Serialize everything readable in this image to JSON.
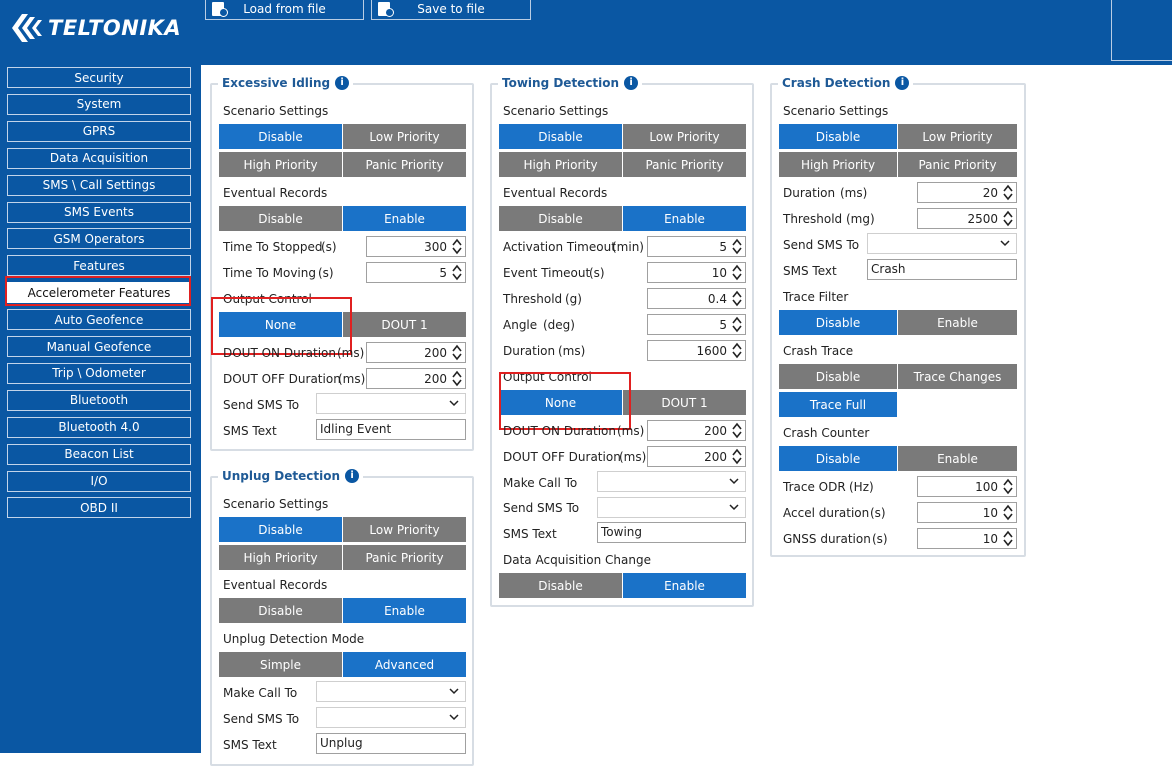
{
  "brand": {
    "logo_text": "TELTONIKA"
  },
  "toolbar": {
    "load_label": "Load from file",
    "save_label": "Save to file"
  },
  "sidebar": {
    "items": [
      {
        "label": "Security"
      },
      {
        "label": "System"
      },
      {
        "label": "GPRS"
      },
      {
        "label": "Data Acquisition"
      },
      {
        "label": "SMS \\ Call Settings"
      },
      {
        "label": "SMS Events"
      },
      {
        "label": "GSM Operators"
      },
      {
        "label": "Features"
      },
      {
        "label": "Accelerometer Features"
      },
      {
        "label": "Auto Geofence"
      },
      {
        "label": "Manual Geofence"
      },
      {
        "label": "Trip \\ Odometer"
      },
      {
        "label": "Bluetooth"
      },
      {
        "label": "Bluetooth 4.0"
      },
      {
        "label": "Beacon List"
      },
      {
        "label": "I/O"
      },
      {
        "label": "OBD II"
      }
    ],
    "active": "Accelerometer Features"
  },
  "idling": {
    "title": "Excessive Idling",
    "scenario_label": "Scenario Settings",
    "scenario": [
      "Disable",
      "Low Priority",
      "High Priority",
      "Panic Priority"
    ],
    "eventual_label": "Eventual Records",
    "eventual": [
      "Disable",
      "Enable"
    ],
    "time_to_stopped_label": "Time To Stopped",
    "time_to_stopped_unit": "(s)",
    "time_to_stopped": "300",
    "time_to_moving_label": "Time To Moving",
    "time_to_moving_unit": "(s)",
    "time_to_moving": "5",
    "output_label": "Output Control",
    "output": [
      "None",
      "DOUT 1"
    ],
    "dout_on_label": "DOUT ON Duration",
    "dout_on_unit": "(ms)",
    "dout_on": "200",
    "dout_off_label": "DOUT OFF Duration",
    "dout_off_unit": "(ms)",
    "dout_off": "200",
    "send_sms_label": "Send SMS To",
    "sms_text_label": "SMS Text",
    "sms_text": "Idling Event"
  },
  "unplug": {
    "title": "Unplug Detection",
    "scenario_label": "Scenario Settings",
    "scenario": [
      "Disable",
      "Low Priority",
      "High Priority",
      "Panic Priority"
    ],
    "eventual_label": "Eventual Records",
    "eventual": [
      "Disable",
      "Enable"
    ],
    "mode_label": "Unplug Detection Mode",
    "mode": [
      "Simple",
      "Advanced"
    ],
    "make_call_label": "Make Call To",
    "send_sms_label": "Send SMS To",
    "sms_text_label": "SMS Text",
    "sms_text": "Unplug"
  },
  "towing": {
    "title": "Towing Detection",
    "scenario_label": "Scenario Settings",
    "scenario": [
      "Disable",
      "Low Priority",
      "High Priority",
      "Panic Priority"
    ],
    "eventual_label": "Eventual Records",
    "eventual": [
      "Disable",
      "Enable"
    ],
    "activation_label": "Activation Timeout",
    "activation_unit": "(min)",
    "activation": "5",
    "event_timeout_label": "Event Timeout",
    "event_timeout_unit": "(s)",
    "event_timeout": "10",
    "threshold_label": "Threshold",
    "threshold_unit": "(g)",
    "threshold": "0.4",
    "angle_label": "Angle",
    "angle_unit": "(deg)",
    "angle": "5",
    "duration_label": "Duration",
    "duration_unit": "(ms)",
    "duration": "1600",
    "output_label": "Output Control",
    "output": [
      "None",
      "DOUT 1"
    ],
    "dout_on_label": "DOUT ON Duration",
    "dout_on_unit": "(ms)",
    "dout_on": "200",
    "dout_off_label": "DOUT OFF Duration",
    "dout_off_unit": "(ms)",
    "dout_off": "200",
    "make_call_label": "Make Call To",
    "send_sms_label": "Send SMS To",
    "sms_text_label": "SMS Text",
    "sms_text": "Towing",
    "dac_label": "Data Acquisition Change",
    "dac": [
      "Disable",
      "Enable"
    ]
  },
  "crash": {
    "title": "Crash Detection",
    "scenario_label": "Scenario Settings",
    "scenario": [
      "Disable",
      "Low Priority",
      "High Priority",
      "Panic Priority"
    ],
    "duration_label": "Duration",
    "duration_unit": "(ms)",
    "duration": "20",
    "threshold_label": "Threshold",
    "threshold_unit": "(mg)",
    "threshold": "2500",
    "send_sms_label": "Send SMS To",
    "sms_text_label": "SMS Text",
    "sms_text": "Crash",
    "trace_filter_label": "Trace Filter",
    "trace_filter": [
      "Disable",
      "Enable"
    ],
    "crash_trace_label": "Crash Trace",
    "crash_trace": [
      "Disable",
      "Trace Changes",
      "Trace Full"
    ],
    "crash_counter_label": "Crash Counter",
    "crash_counter": [
      "Disable",
      "Enable"
    ],
    "trace_odr_label": "Trace ODR",
    "trace_odr_unit": "(Hz)",
    "trace_odr": "100",
    "accel_dur_label": "Accel duration",
    "accel_dur_unit": "(s)",
    "accel_dur": "10",
    "gnss_dur_label": "GNSS duration",
    "gnss_dur_unit": "(s)",
    "gnss_dur": "10"
  },
  "colors": {
    "brand_blue": "#0a57a3",
    "selected": "#1a72c8",
    "unselected": "#7a7a7a",
    "highlight": "#e02020"
  }
}
